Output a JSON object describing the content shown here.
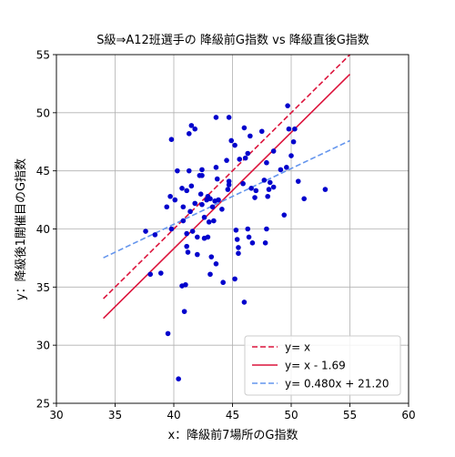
{
  "chart_data": {
    "type": "scatter",
    "title": "S級⇒A12班選手の 降級前G指数 vs 降級直後G指数",
    "xlabel": "x：降級前7場所のG指数",
    "ylabel": "y：降級後1開催目のG指数",
    "xlim": [
      30,
      60
    ],
    "ylim": [
      25,
      55
    ],
    "xticks": [
      30,
      35,
      40,
      45,
      50,
      55,
      60
    ],
    "yticks": [
      25,
      30,
      35,
      40,
      45,
      50,
      55
    ],
    "grid": true,
    "legend_position": "lower-right",
    "points_color": "#0000cc",
    "points": [
      [
        39.8,
        47.7
      ],
      [
        40.3,
        45.0
      ],
      [
        41.3,
        48.2
      ],
      [
        41.5,
        48.9
      ],
      [
        41.8,
        48.6
      ],
      [
        43.6,
        49.6
      ],
      [
        44.7,
        49.6
      ],
      [
        44.9,
        47.6
      ],
      [
        45.2,
        47.2
      ],
      [
        46.0,
        48.7
      ],
      [
        46.5,
        48.0
      ],
      [
        47.5,
        48.4
      ],
      [
        49.7,
        50.6
      ],
      [
        49.8,
        48.6
      ],
      [
        50.3,
        48.6
      ],
      [
        50.2,
        47.5
      ],
      [
        50.0,
        46.3
      ],
      [
        49.1,
        45.1
      ],
      [
        49.6,
        45.3
      ],
      [
        48.5,
        46.7
      ],
      [
        47.9,
        45.7
      ],
      [
        46.3,
        46.5
      ],
      [
        46.1,
        46.1
      ],
      [
        45.6,
        46.0
      ],
      [
        44.5,
        45.9
      ],
      [
        43.6,
        45.3
      ],
      [
        42.4,
        45.1
      ],
      [
        41.3,
        45.0
      ],
      [
        42.2,
        44.6
      ],
      [
        42.4,
        44.6
      ],
      [
        43.7,
        44.3
      ],
      [
        44.7,
        44.1
      ],
      [
        44.7,
        43.8
      ],
      [
        45.9,
        43.9
      ],
      [
        46.6,
        43.5
      ],
      [
        47.0,
        43.3
      ],
      [
        47.7,
        44.2
      ],
      [
        48.2,
        44.0
      ],
      [
        48.1,
        43.4
      ],
      [
        48.0,
        42.8
      ],
      [
        48.5,
        43.6
      ],
      [
        50.6,
        44.1
      ],
      [
        51.1,
        42.6
      ],
      [
        52.9,
        43.4
      ],
      [
        46.9,
        42.7
      ],
      [
        44.6,
        43.4
      ],
      [
        43.8,
        42.5
      ],
      [
        43.5,
        42.4
      ],
      [
        43.1,
        42.6
      ],
      [
        42.9,
        42.8
      ],
      [
        42.3,
        43.0
      ],
      [
        41.5,
        43.7
      ],
      [
        41.1,
        43.3
      ],
      [
        40.7,
        43.5
      ],
      [
        40.1,
        42.5
      ],
      [
        39.7,
        42.8
      ],
      [
        39.4,
        41.9
      ],
      [
        40.8,
        41.9
      ],
      [
        41.8,
        42.2
      ],
      [
        42.4,
        42.1
      ],
      [
        42.8,
        42.5
      ],
      [
        43.3,
        41.9
      ],
      [
        44.1,
        41.7
      ],
      [
        42.6,
        41.0
      ],
      [
        43.4,
        40.7
      ],
      [
        43.0,
        40.6
      ],
      [
        41.4,
        41.5
      ],
      [
        40.8,
        40.7
      ],
      [
        39.8,
        40.0
      ],
      [
        37.6,
        39.8
      ],
      [
        38.4,
        39.5
      ],
      [
        41.1,
        39.6
      ],
      [
        41.6,
        39.8
      ],
      [
        42.0,
        39.3
      ],
      [
        42.6,
        39.2
      ],
      [
        42.9,
        39.3
      ],
      [
        45.3,
        39.9
      ],
      [
        45.4,
        39.1
      ],
      [
        46.3,
        40.0
      ],
      [
        46.4,
        39.3
      ],
      [
        46.7,
        38.8
      ],
      [
        47.8,
        38.8
      ],
      [
        47.9,
        40.0
      ],
      [
        49.4,
        41.2
      ],
      [
        41.1,
        38.5
      ],
      [
        41.2,
        38.0
      ],
      [
        42.0,
        37.8
      ],
      [
        43.2,
        37.6
      ],
      [
        43.6,
        37.0
      ],
      [
        45.5,
        38.4
      ],
      [
        45.5,
        37.9
      ],
      [
        38.0,
        36.1
      ],
      [
        38.9,
        36.2
      ],
      [
        43.1,
        36.1
      ],
      [
        44.2,
        35.4
      ],
      [
        45.2,
        35.7
      ],
      [
        40.7,
        35.1
      ],
      [
        41.0,
        35.2
      ],
      [
        46.0,
        33.7
      ],
      [
        40.9,
        32.9
      ],
      [
        39.5,
        31.0
      ],
      [
        40.4,
        27.1
      ]
    ],
    "series": [
      {
        "name": "y= x",
        "slope": 1.0,
        "intercept": 0.0,
        "color": "#dc143c",
        "dash": "dashed",
        "x_range": [
          34,
          55
        ]
      },
      {
        "name": "y= x - 1.69",
        "slope": 1.0,
        "intercept": -1.69,
        "color": "#dc143c",
        "dash": "solid",
        "x_range": [
          34,
          55
        ]
      },
      {
        "name": "y= 0.480x + 21.20",
        "slope": 0.48,
        "intercept": 21.2,
        "color": "#6495ed",
        "dash": "dashed",
        "x_range": [
          34,
          55
        ]
      }
    ]
  }
}
